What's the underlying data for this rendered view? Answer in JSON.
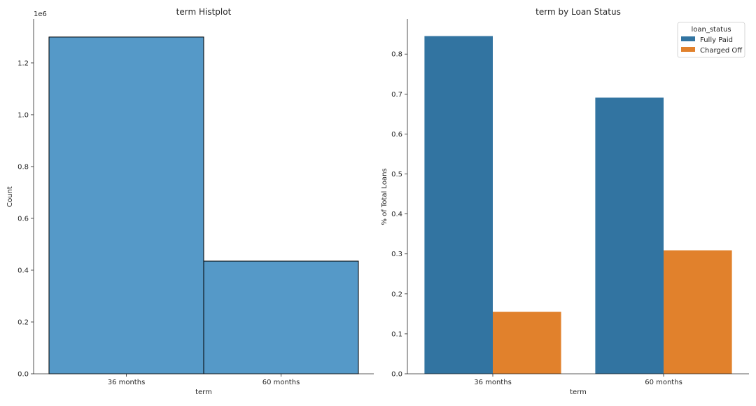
{
  "chart_data": [
    {
      "type": "bar",
      "title": "term Histplot",
      "xlabel": "term",
      "ylabel": "Count",
      "y_offset_label": "1e6",
      "categories": [
        "36 months",
        "60 months"
      ],
      "values": [
        1300000,
        435000
      ],
      "ylim": [
        0,
        1370000
      ],
      "yticks": [
        0,
        200000,
        400000,
        600000,
        800000,
        1000000,
        1200000
      ],
      "ytick_labels": [
        "0.0",
        "0.2",
        "0.4",
        "0.6",
        "0.8",
        "1.0",
        "1.2"
      ],
      "bar_color": "#5599c8",
      "edge_color": "#000000",
      "grid": false
    },
    {
      "type": "bar",
      "title": "term by Loan Status",
      "xlabel": "term",
      "ylabel": "% of Total Loans",
      "categories": [
        "36 months",
        "60 months"
      ],
      "series": [
        {
          "name": "Fully Paid",
          "values": [
            0.845,
            0.691
          ],
          "color": "#3274a1"
        },
        {
          "name": "Charged Off",
          "values": [
            0.155,
            0.309
          ],
          "color": "#e1812c"
        }
      ],
      "ylim": [
        0,
        0.888
      ],
      "yticks": [
        0,
        0.1,
        0.2,
        0.3,
        0.4,
        0.5,
        0.6,
        0.7,
        0.8
      ],
      "ytick_labels": [
        "0.0",
        "0.1",
        "0.2",
        "0.3",
        "0.4",
        "0.5",
        "0.6",
        "0.7",
        "0.8"
      ],
      "legend_title": "loan_status",
      "legend_position": "top-right",
      "grid": false
    }
  ]
}
